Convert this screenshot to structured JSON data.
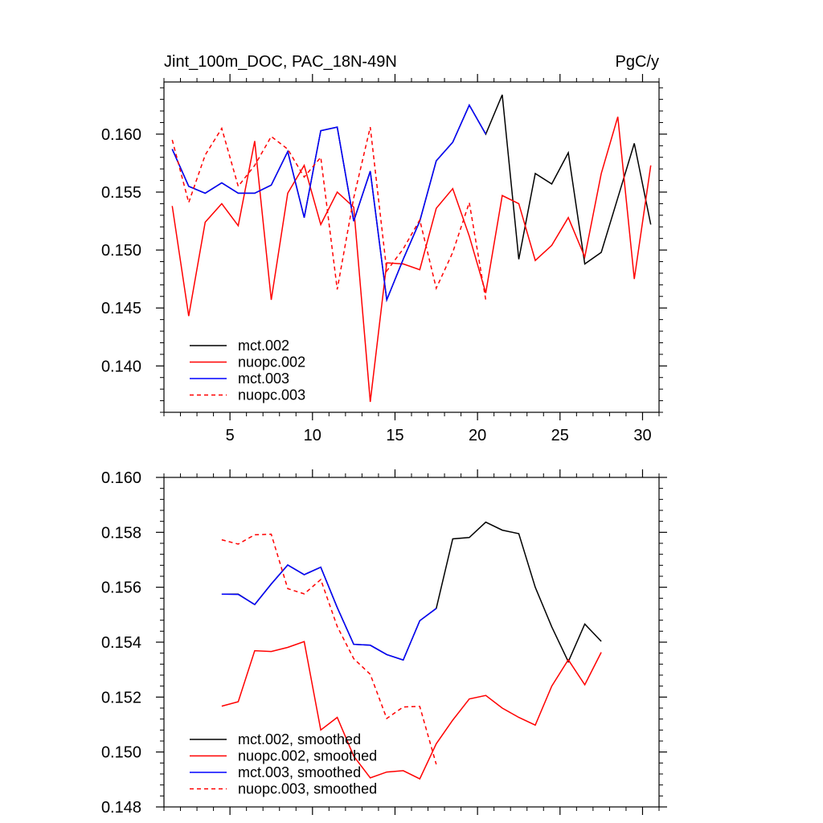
{
  "chart_data": [
    {
      "type": "line",
      "title": "Jint_100m_DOC, PAC_18N-49N",
      "units_label": "PgC/y",
      "xlim": [
        1,
        31
      ],
      "ylim": [
        0.136,
        0.1645
      ],
      "x_ticks": [
        5,
        10,
        15,
        20,
        25,
        30
      ],
      "x_tick_labels": [
        "5",
        "10",
        "15",
        "20",
        "25",
        "30"
      ],
      "x_minor_step": 1,
      "y_ticks": [
        0.14,
        0.145,
        0.15,
        0.155,
        0.16
      ],
      "y_tick_labels": [
        "0.140",
        "0.145",
        "0.150",
        "0.155",
        "0.160"
      ],
      "y_minor_step": 0.001,
      "legend_position": "lower-left",
      "series": [
        {
          "name": "mct.002",
          "color": "#000000",
          "dash": "solid",
          "x": [
            1.5,
            2.5,
            3.5,
            4.5,
            5.5,
            6.5,
            7.5,
            8.5,
            9.5,
            10.5,
            11.5,
            12.5,
            13.5,
            14.5,
            15.5,
            16.5,
            17.5,
            18.5,
            19.5,
            20.5,
            21.5,
            22.5,
            23.5,
            24.5,
            25.5,
            26.5,
            27.5,
            28.5,
            29.5,
            30.5
          ],
          "values": [
            0.1587,
            0.1555,
            0.1549,
            0.1558,
            0.1549,
            0.1549,
            0.1556,
            0.1585,
            0.1528,
            0.1603,
            0.1606,
            0.1525,
            0.1568,
            0.1457,
            0.1492,
            0.1525,
            0.1577,
            0.1593,
            0.1625,
            0.16,
            0.1634,
            0.1492,
            0.1566,
            0.1557,
            0.1584,
            0.1488,
            0.1498,
            0.1545,
            0.1592,
            0.1522
          ]
        },
        {
          "name": "nuopc.002",
          "color": "#ff0000",
          "dash": "solid",
          "x": [
            1.5,
            2.5,
            3.5,
            4.5,
            5.5,
            6.5,
            7.5,
            8.5,
            9.5,
            10.5,
            11.5,
            12.5,
            13.5,
            14.5,
            15.5,
            16.5,
            17.5,
            18.5,
            19.5,
            20.5,
            21.5,
            22.5,
            23.5,
            24.5,
            25.5,
            26.5,
            27.5,
            28.5,
            29.5,
            30.5
          ],
          "values": [
            0.1538,
            0.1443,
            0.1524,
            0.154,
            0.1521,
            0.1594,
            0.1457,
            0.1549,
            0.1573,
            0.1522,
            0.155,
            0.1537,
            0.1369,
            0.1489,
            0.1488,
            0.1483,
            0.1536,
            0.1553,
            0.1512,
            0.1463,
            0.1547,
            0.154,
            0.1491,
            0.1504,
            0.1528,
            0.1494,
            0.1566,
            0.1615,
            0.1475,
            0.1573
          ]
        },
        {
          "name": "mct.003",
          "color": "#0000ff",
          "dash": "solid",
          "x": [
            1.5,
            2.5,
            3.5,
            4.5,
            5.5,
            6.5,
            7.5,
            8.5,
            9.5,
            10.5,
            11.5,
            12.5,
            13.5,
            14.5,
            15.5,
            16.5,
            17.5,
            18.5,
            19.5,
            20.5
          ],
          "values": [
            0.1587,
            0.1555,
            0.1549,
            0.1558,
            0.1549,
            0.1549,
            0.1556,
            0.1585,
            0.1528,
            0.1603,
            0.1606,
            0.1525,
            0.1568,
            0.1457,
            0.1492,
            0.1525,
            0.1577,
            0.1593,
            0.1625,
            0.16
          ]
        },
        {
          "name": "nuopc.003",
          "color": "#ff0000",
          "dash": "dashed",
          "x": [
            1.5,
            2.5,
            3.5,
            4.5,
            5.5,
            6.5,
            7.5,
            8.5,
            9.5,
            10.5,
            11.5,
            12.5,
            13.5,
            14.5,
            15.5,
            16.5,
            17.5,
            18.5,
            19.5,
            20.5
          ],
          "values": [
            0.1595,
            0.1541,
            0.1582,
            0.1605,
            0.1555,
            0.1573,
            0.1598,
            0.1587,
            0.1563,
            0.158,
            0.1466,
            0.1545,
            0.1606,
            0.1482,
            0.1501,
            0.1526,
            0.1467,
            0.1498,
            0.1541,
            0.1457
          ]
        }
      ]
    },
    {
      "type": "line",
      "xlim": [
        1,
        31
      ],
      "ylim": [
        0.148,
        0.16
      ],
      "x_ticks": [
        5,
        10,
        15,
        20,
        25,
        30
      ],
      "x_tick_labels": [],
      "x_minor_step": 1,
      "y_ticks": [
        0.148,
        0.15,
        0.152,
        0.154,
        0.156,
        0.158,
        0.16
      ],
      "y_tick_labels": [
        "0.148",
        "0.150",
        "0.152",
        "0.154",
        "0.156",
        "0.158",
        "0.160"
      ],
      "y_minor_step": 0.0004,
      "legend_position": "lower-left",
      "series": [
        {
          "name": "mct.002, smoothed",
          "color": "#000000",
          "dash": "solid",
          "x": [
            4.5,
            5.5,
            6.5,
            7.5,
            8.5,
            9.5,
            10.5,
            11.5,
            12.5,
            13.5,
            14.5,
            15.5,
            16.5,
            17.5,
            18.5,
            19.5,
            20.5,
            21.5,
            22.5,
            23.5,
            24.5,
            25.5,
            26.5,
            27.5
          ],
          "values": [
            0.15575,
            0.15575,
            0.15537,
            0.15612,
            0.15681,
            0.15646,
            0.15673,
            0.15526,
            0.15392,
            0.15389,
            0.15355,
            0.15335,
            0.15478,
            0.15523,
            0.15776,
            0.15781,
            0.15837,
            0.15808,
            0.15795,
            0.156,
            0.15456,
            0.15329,
            0.15466,
            0.15403
          ]
        },
        {
          "name": "nuopc.002, smoothed",
          "color": "#ff0000",
          "dash": "solid",
          "x": [
            4.5,
            5.5,
            6.5,
            7.5,
            8.5,
            9.5,
            10.5,
            11.5,
            12.5,
            13.5,
            14.5,
            15.5,
            16.5,
            17.5,
            18.5,
            19.5,
            20.5,
            21.5,
            22.5,
            23.5,
            24.5,
            25.5,
            26.5,
            27.5
          ],
          "values": [
            0.15167,
            0.15183,
            0.15369,
            0.15366,
            0.15381,
            0.15402,
            0.1508,
            0.15126,
            0.14985,
            0.14906,
            0.14927,
            0.14932,
            0.14902,
            0.1503,
            0.15116,
            0.15193,
            0.15206,
            0.1516,
            0.15126,
            0.15098,
            0.1524,
            0.15336,
            0.15245,
            0.15363
          ]
        },
        {
          "name": "mct.003, smoothed",
          "color": "#0000ff",
          "dash": "solid",
          "x": [
            4.5,
            5.5,
            6.5,
            7.5,
            8.5,
            9.5,
            10.5,
            11.5,
            12.5,
            13.5,
            14.5,
            15.5,
            16.5,
            17.5
          ],
          "values": [
            0.15575,
            0.15574,
            0.15537,
            0.15612,
            0.15681,
            0.15646,
            0.15673,
            0.15526,
            0.15392,
            0.15389,
            0.15355,
            0.15335,
            0.15478,
            0.15523
          ]
        },
        {
          "name": "nuopc.003, smoothed",
          "color": "#ff0000",
          "dash": "dashed",
          "x": [
            4.5,
            5.5,
            6.5,
            7.5,
            8.5,
            9.5,
            10.5,
            11.5,
            12.5,
            13.5,
            14.5,
            15.5,
            16.5,
            17.5
          ],
          "values": [
            0.15773,
            0.15757,
            0.15791,
            0.15793,
            0.15595,
            0.15576,
            0.15628,
            0.15457,
            0.1534,
            0.15283,
            0.15122,
            0.15164,
            0.15166,
            0.14955
          ]
        }
      ]
    }
  ]
}
